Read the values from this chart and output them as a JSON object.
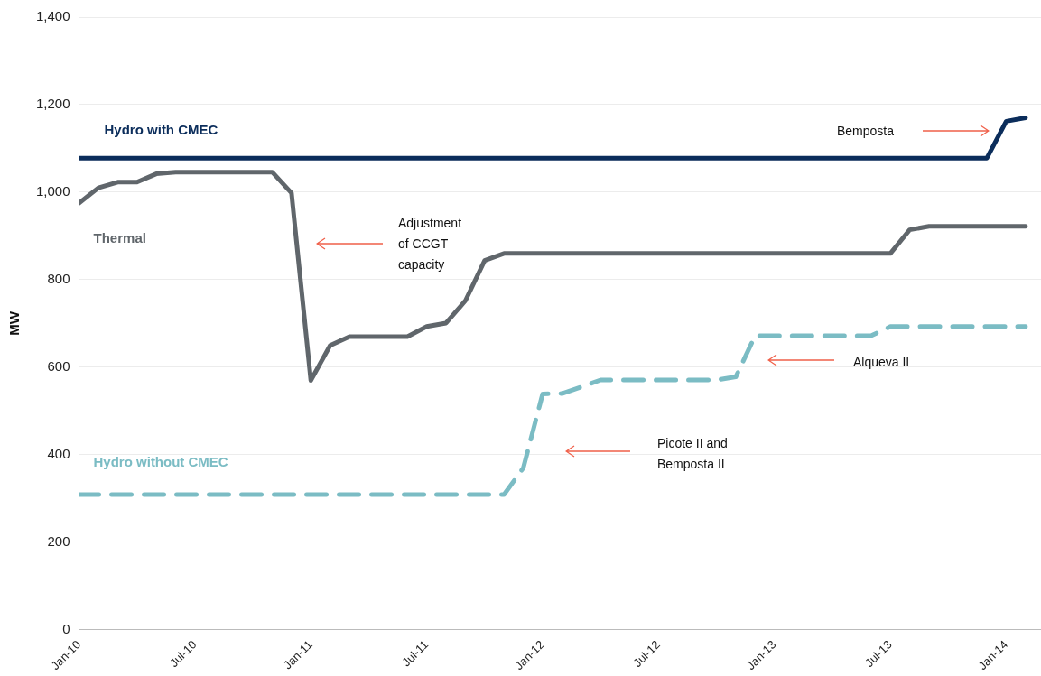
{
  "chart_data": {
    "type": "line",
    "ylabel": "MW",
    "legend": false,
    "grid": "y",
    "marker": "none",
    "x": [
      "2010-01",
      "2010-02",
      "2010-03",
      "2010-04",
      "2010-05",
      "2010-06",
      "2010-07",
      "2010-08",
      "2010-09",
      "2010-10",
      "2010-11",
      "2010-12",
      "2011-01",
      "2011-02",
      "2011-03",
      "2011-04",
      "2011-05",
      "2011-06",
      "2011-07",
      "2011-08",
      "2011-09",
      "2011-10",
      "2011-11",
      "2011-12",
      "2012-01",
      "2012-02",
      "2012-03",
      "2012-04",
      "2012-05",
      "2012-06",
      "2012-07",
      "2012-08",
      "2012-09",
      "2012-10",
      "2012-11",
      "2012-12",
      "2013-01",
      "2013-02",
      "2013-03",
      "2013-04",
      "2013-05",
      "2013-06",
      "2013-07",
      "2013-08",
      "2013-09",
      "2013-10",
      "2013-11",
      "2013-12",
      "2014-01",
      "2014-02"
    ],
    "xlim": [
      "2010-01",
      "2014-02-25"
    ],
    "xticks": [
      {
        "value": "2010-01",
        "label": "Jan-10"
      },
      {
        "value": "2010-07",
        "label": "Jul-10"
      },
      {
        "value": "2011-01",
        "label": "Jan-11"
      },
      {
        "value": "2011-07",
        "label": "Jul-11"
      },
      {
        "value": "2012-01",
        "label": "Jan-12"
      },
      {
        "value": "2012-07",
        "label": "Jul-12"
      },
      {
        "value": "2013-01",
        "label": "Jan-13"
      },
      {
        "value": "2013-07",
        "label": "Jul-13"
      },
      {
        "value": "2014-01",
        "label": "Jan-14"
      }
    ],
    "ylim": [
      0,
      1400
    ],
    "yticks": [
      0,
      200,
      400,
      600,
      800,
      {
        "value": 1000,
        "label": "1,000"
      },
      {
        "value": 1200,
        "label": "1,200"
      },
      {
        "value": 1400,
        "label": "1,400"
      }
    ],
    "series": [
      {
        "name": "Hydro with CMEC",
        "color": "#0b2d5b",
        "line_style": "solid",
        "values": [
          1078,
          1078,
          1078,
          1078,
          1078,
          1078,
          1078,
          1078,
          1078,
          1078,
          1078,
          1078,
          1078,
          1078,
          1078,
          1078,
          1078,
          1078,
          1078,
          1078,
          1078,
          1078,
          1078,
          1078,
          1078,
          1078,
          1078,
          1078,
          1078,
          1078,
          1078,
          1078,
          1078,
          1078,
          1078,
          1078,
          1078,
          1078,
          1078,
          1078,
          1078,
          1078,
          1078,
          1078,
          1078,
          1078,
          1078,
          1078,
          1162,
          1170
        ]
      },
      {
        "name": "Thermal",
        "color": "#60666b",
        "line_style": "solid",
        "values": [
          975,
          1010,
          1023,
          1023,
          1042,
          1046,
          1046,
          1046,
          1046,
          1046,
          1046,
          998,
          570,
          650,
          670,
          670,
          670,
          670,
          693,
          701,
          752,
          844,
          860,
          860,
          860,
          860,
          860,
          860,
          860,
          860,
          860,
          860,
          860,
          860,
          860,
          860,
          860,
          860,
          860,
          860,
          860,
          860,
          860,
          914,
          922,
          922,
          922,
          922,
          922,
          922
        ]
      },
      {
        "name": "Hydro without CMEC",
        "color": "#7bbcc4",
        "line_style": "dashed",
        "values": [
          309,
          309,
          309,
          309,
          309,
          309,
          309,
          309,
          309,
          309,
          309,
          309,
          309,
          309,
          309,
          309,
          309,
          309,
          309,
          309,
          309,
          309,
          309,
          370,
          539,
          540,
          555,
          571,
          571,
          571,
          571,
          571,
          571,
          571,
          578,
          672,
          672,
          672,
          672,
          672,
          672,
          672,
          693,
          693,
          693,
          693,
          693,
          693,
          693,
          693
        ]
      }
    ],
    "annotations": [
      "Adjustment\nof CCGT\ncapacity",
      "Picote II and\nBemposta II",
      "Alqueva II",
      "Bemposta"
    ]
  }
}
